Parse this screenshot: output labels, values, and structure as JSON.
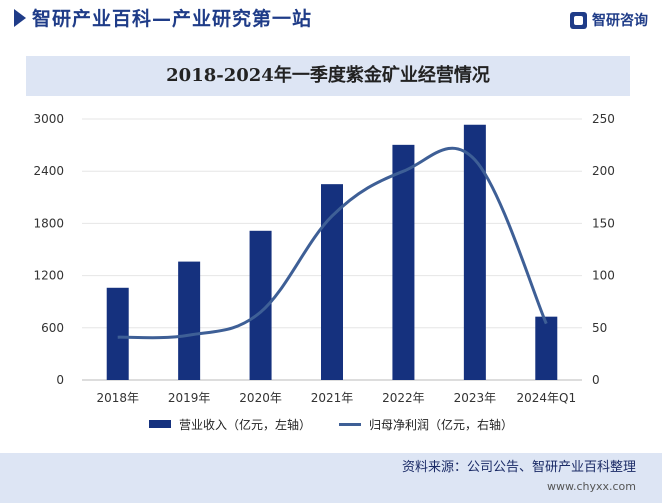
{
  "header": {
    "brand_title": "智研产业百科—产业研究第一站",
    "logo_text": "智研咨询"
  },
  "chart_data": {
    "type": "bar",
    "title": "2018-2024年一季度紫金矿业经营情况",
    "categories": [
      "2018年",
      "2019年",
      "2020年",
      "2021年",
      "2022年",
      "2023年",
      "2024年Q1"
    ],
    "series": [
      {
        "name": "营业收入（亿元，左轴）",
        "type": "bar",
        "axis": "left",
        "color": "#15317e",
        "values": [
          1060,
          1361,
          1715,
          2251,
          2703,
          2934,
          728
        ]
      },
      {
        "name": "归母净利润（亿元，右轴）",
        "type": "line",
        "axis": "right",
        "color": "#3e5f96",
        "values": [
          41,
          43,
          65,
          157,
          200,
          211,
          54
        ]
      }
    ],
    "y_left": {
      "min": 0,
      "max": 3000,
      "ticks": [
        0,
        600,
        1200,
        1800,
        2400,
        3000
      ]
    },
    "y_right": {
      "min": 0,
      "max": 250,
      "ticks": [
        0,
        50,
        100,
        150,
        200,
        250
      ]
    },
    "grid": true,
    "legend_position": "bottom"
  },
  "footer": {
    "source": "资料来源：公司公告、智研产业百科整理",
    "site": "www.chyxx.com"
  },
  "colors": {
    "brand": "#1f3c88",
    "band": "#dde5f4"
  }
}
